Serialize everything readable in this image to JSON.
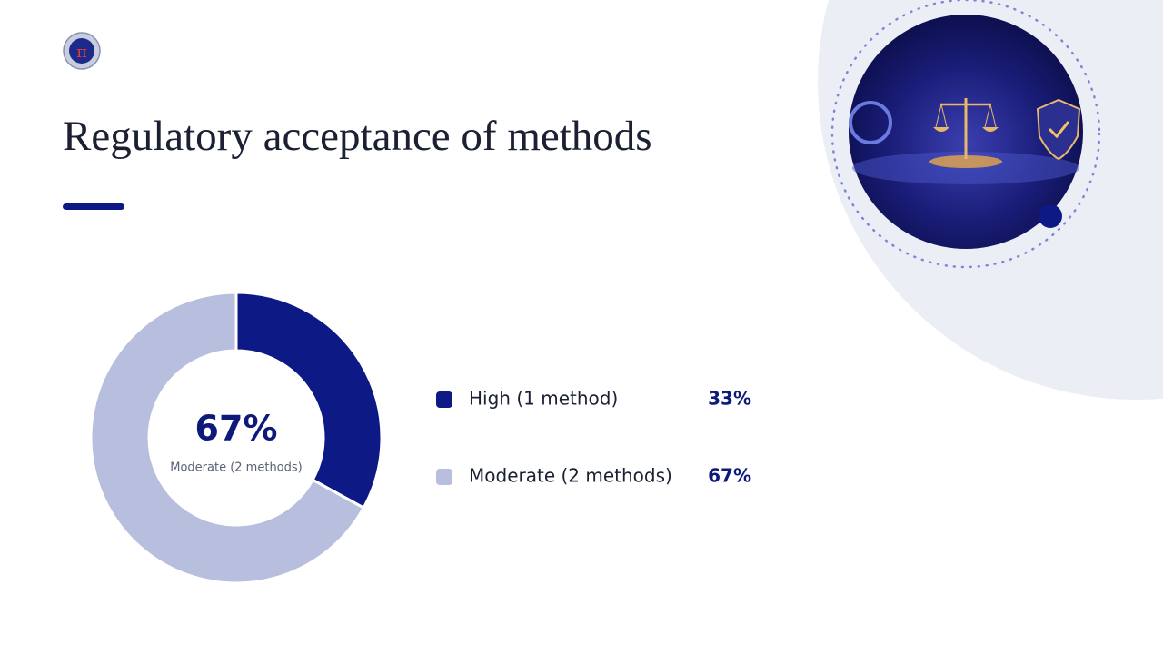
{
  "chart_data": {
    "type": "pie",
    "title": "Regulatory acceptance of methods",
    "categories": [
      "High (1 method)",
      "Moderate (2 methods)"
    ],
    "values": [
      33,
      67
    ],
    "value_labels": [
      "33%",
      "67%"
    ],
    "colors": [
      "#0d1a85",
      "#b8bedd"
    ]
  }
}
